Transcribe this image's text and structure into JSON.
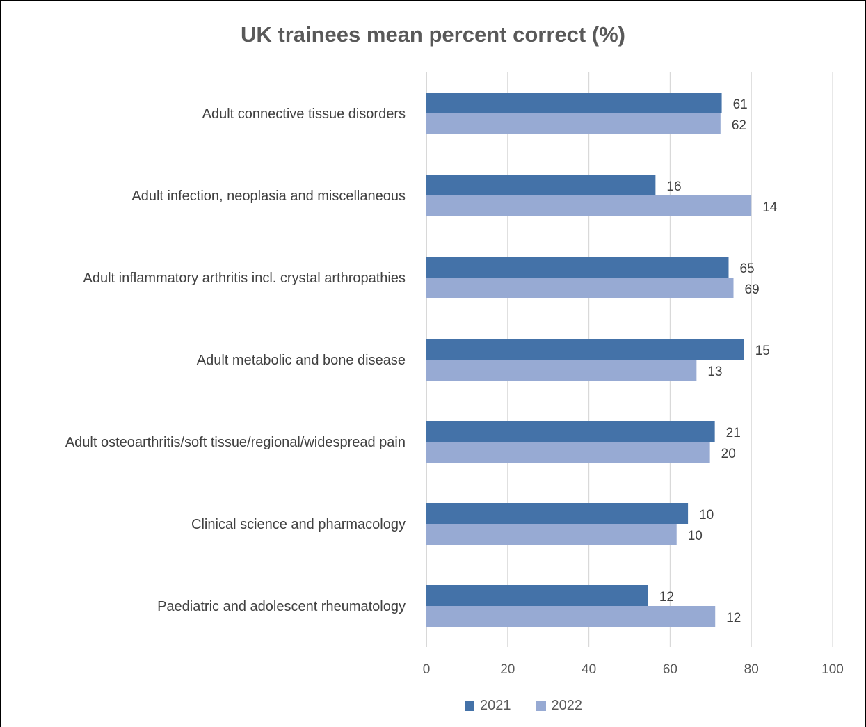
{
  "chart_data": {
    "type": "bar",
    "orientation": "horizontal",
    "title": "UK trainees mean percent correct (%)",
    "xlabel": "",
    "ylabel": "",
    "xlim": [
      0,
      100
    ],
    "xticks": [
      "0",
      "20",
      "40",
      "60",
      "80",
      "100"
    ],
    "grid": true,
    "legend_position": "bottom",
    "categories": [
      "Adult connective tissue disorders",
      "Adult infection, neoplasia and miscellaneous",
      "Adult inflammatory arthritis incl. crystal arthropathies",
      "Adult metabolic and bone disease",
      "Adult osteoarthritis/soft tissue/regional/widespread pain",
      "Clinical science and pharmacology",
      "Paediatric and adolescent rheumatology"
    ],
    "series": [
      {
        "name": "2021",
        "color": "#4472a8",
        "values": [
          72.7,
          56.4,
          74.4,
          78.2,
          71.0,
          64.4,
          54.6
        ],
        "data_labels": [
          "61",
          "16",
          "65",
          "15",
          "21",
          "10",
          "12"
        ]
      },
      {
        "name": "2022",
        "color": "#97aad3",
        "values": [
          72.4,
          80.0,
          75.6,
          66.5,
          69.8,
          61.6,
          71.1
        ],
        "data_labels": [
          "62",
          "14",
          "69",
          "13",
          "20",
          "10",
          "12"
        ]
      }
    ]
  }
}
